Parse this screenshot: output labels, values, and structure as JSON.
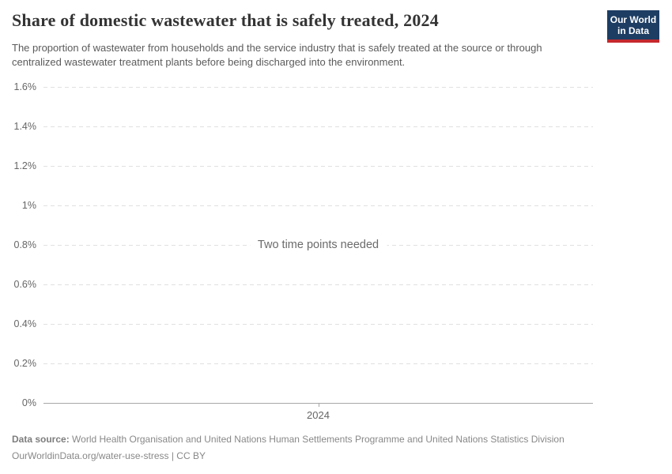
{
  "header": {
    "title": "Share of domestic wastewater that is safely treated, 2024",
    "subtitle": "The proportion of wastewater from households and the service industry that is safely treated at the source or through centralized wastewater treatment plants before being discharged into the environment."
  },
  "logo": {
    "line1": "Our World",
    "line2": "in Data",
    "bg_color": "#1d3d63",
    "bar_color": "#c5282d"
  },
  "chart_data": {
    "type": "line",
    "title": "Share of domestic wastewater that is safely treated, 2024",
    "series": [],
    "message": "Two time points needed",
    "ylabel": "",
    "xlabel": "",
    "unit": "%",
    "ylim": [
      0,
      1.6
    ],
    "grid": "horizontal-dashed",
    "legend_position": "none",
    "yticks": [
      {
        "value": 0.0,
        "label": "0%"
      },
      {
        "value": 0.2,
        "label": "0.2%"
      },
      {
        "value": 0.4,
        "label": "0.4%"
      },
      {
        "value": 0.6,
        "label": "0.6%"
      },
      {
        "value": 0.8,
        "label": "0.8%"
      },
      {
        "value": 1.0,
        "label": "1%"
      },
      {
        "value": 1.2,
        "label": "1.2%"
      },
      {
        "value": 1.4,
        "label": "1.4%"
      },
      {
        "value": 1.6,
        "label": "1.6%"
      }
    ],
    "xticks": [
      {
        "label": "2024"
      }
    ]
  },
  "footer": {
    "source_label": "Data source:",
    "source_text": "World Health Organisation and United Nations Human Settlements Programme and United Nations Statistics Division",
    "note": "OurWorldinData.org/water-use-stress | CC BY"
  },
  "colors": {
    "grid": "#e0e0e0",
    "axis": "#a7a7a7",
    "tick_label": "#666666",
    "message": "#6b6b6b",
    "title": "#333333",
    "subtitle": "#5b5b5b",
    "footer": "#888888"
  }
}
